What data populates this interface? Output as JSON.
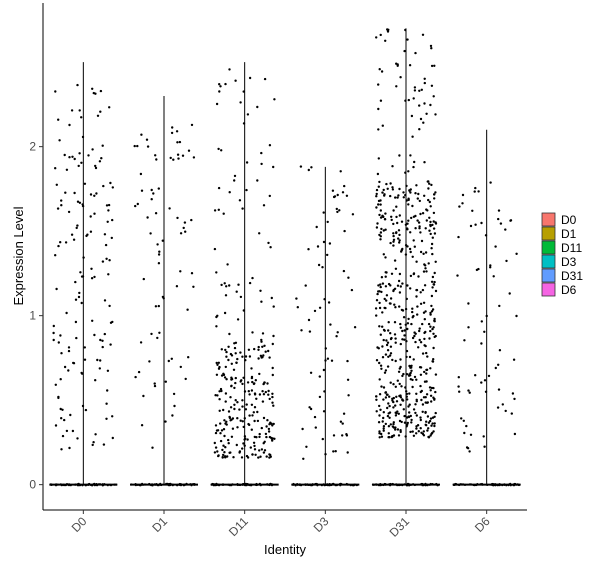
{
  "chart_data": {
    "type": "violin-jitter",
    "title": "",
    "xlabel": "Identity",
    "ylabel": "Expression Level",
    "ylim": [
      -0.15,
      2.85
    ],
    "yticks": [
      0,
      1,
      2
    ],
    "categories": [
      "D0",
      "D1",
      "D11",
      "D3",
      "D31",
      "D6"
    ],
    "legend": {
      "position": "right",
      "entries": [
        {
          "label": "D0",
          "color": "#F8766D"
        },
        {
          "label": "D1",
          "color": "#B79F00"
        },
        {
          "label": "D11",
          "color": "#00BA38"
        },
        {
          "label": "D3",
          "color": "#00BFC4"
        },
        {
          "label": "D31",
          "color": "#619CFF"
        },
        {
          "label": "D6",
          "color": "#F564E3"
        }
      ]
    },
    "groups": [
      {
        "name": "D0",
        "max": 2.5,
        "npos": 150,
        "lo": 0.18,
        "hi": 2.38
      },
      {
        "name": "D1",
        "max": 2.3,
        "npos": 75,
        "lo": 0.2,
        "hi": 2.15
      },
      {
        "name": "D11",
        "max": 2.5,
        "npos": 300,
        "lo": 0.16,
        "hi": 2.5,
        "dense_below": 0.85
      },
      {
        "name": "D3",
        "max": 1.88,
        "npos": 75,
        "lo": 0.15,
        "hi": 1.9
      },
      {
        "name": "D31",
        "max": 2.7,
        "npos": 600,
        "lo": 0.28,
        "hi": 2.7,
        "dense_below": 1.8
      },
      {
        "name": "D6",
        "max": 2.1,
        "npos": 70,
        "lo": 0.18,
        "hi": 1.8
      }
    ]
  }
}
